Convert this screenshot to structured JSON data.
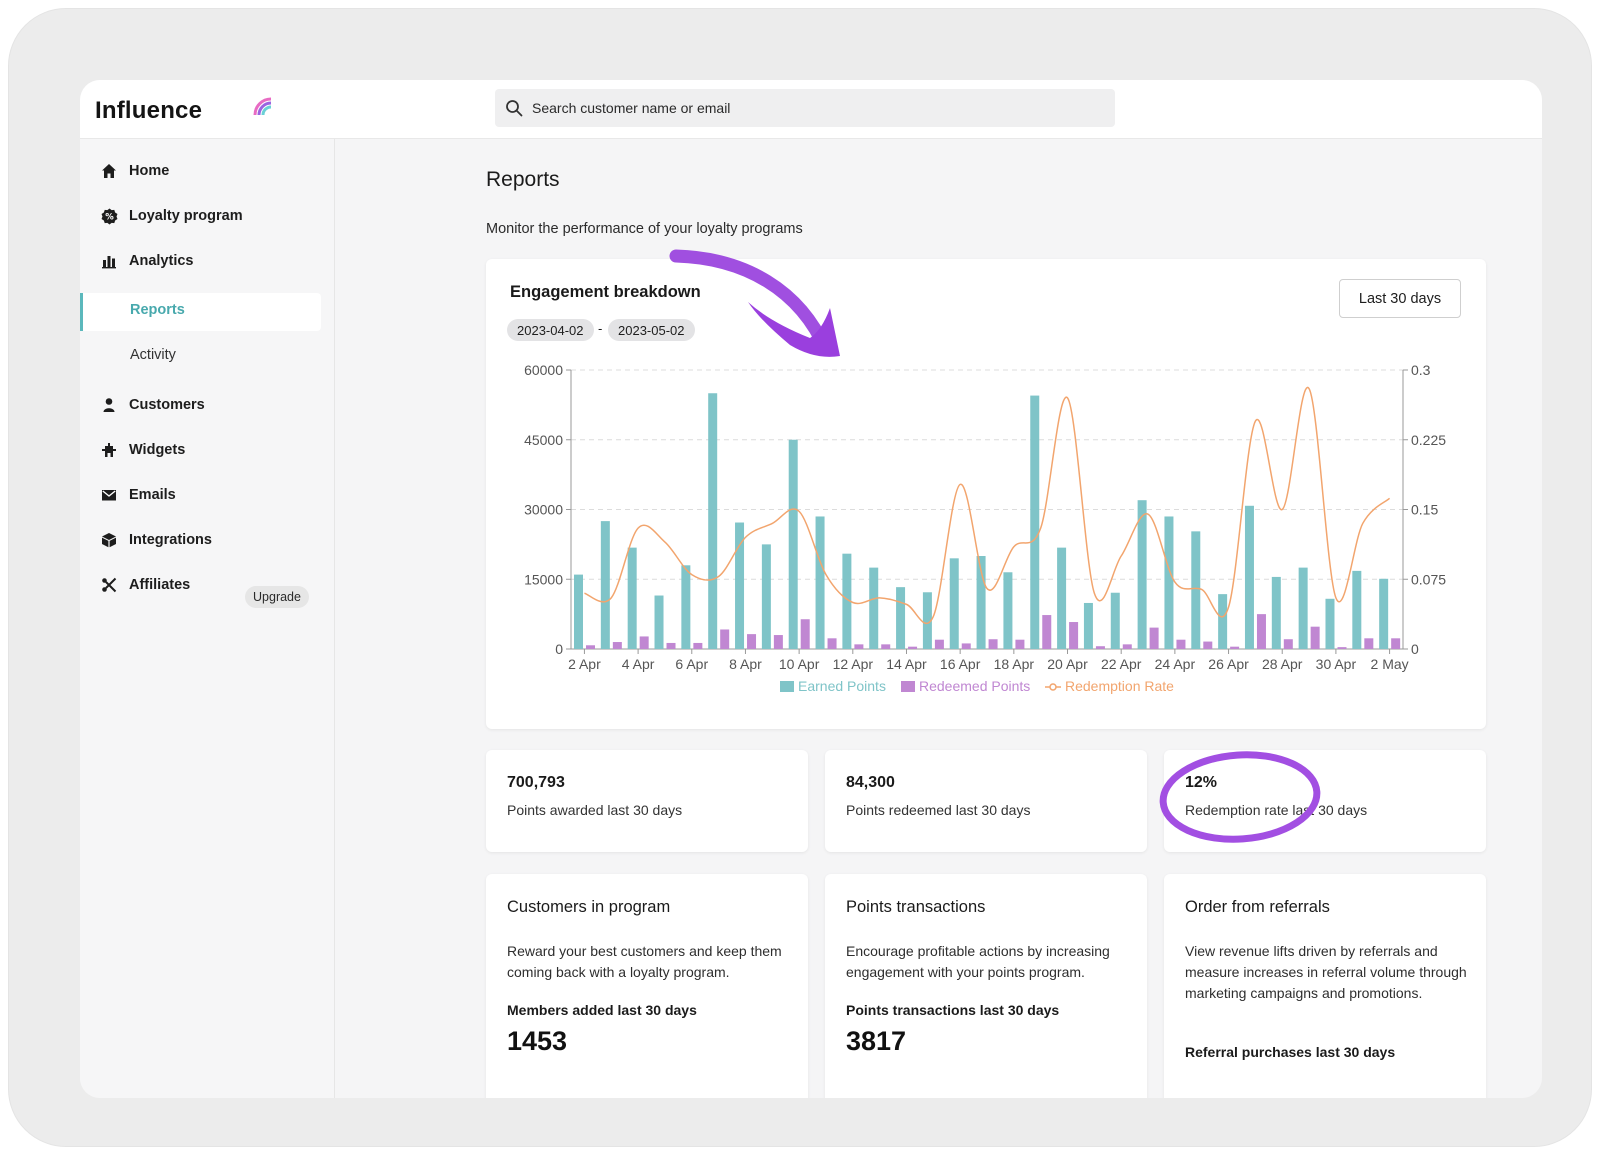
{
  "app": {
    "logo": "Influence",
    "search": {
      "placeholder": "Search customer name or email"
    }
  },
  "sidebar": {
    "items": [
      {
        "label": "Home",
        "icon": "home-icon"
      },
      {
        "label": "Loyalty program",
        "icon": "loyalty-icon"
      },
      {
        "label": "Analytics",
        "icon": "analytics-icon"
      },
      {
        "label": "Reports",
        "icon": ""
      },
      {
        "label": "Activity",
        "icon": ""
      },
      {
        "label": "Customers",
        "icon": "user-icon"
      },
      {
        "label": "Widgets",
        "icon": "widgets-icon"
      },
      {
        "label": "Emails",
        "icon": "mail-icon"
      },
      {
        "label": "Integrations",
        "icon": "cube-icon"
      },
      {
        "label": "Affiliates",
        "icon": "affiliates-icon"
      }
    ],
    "upgrade_label": "Upgrade"
  },
  "page": {
    "title": "Reports",
    "subtitle": "Monitor the performance of your loyalty programs"
  },
  "engagement": {
    "title": "Engagement breakdown",
    "date_start": "2023-04-02",
    "date_separator": "-",
    "date_end": "2023-05-02",
    "range_label": "Last 30 days"
  },
  "stats": [
    {
      "value": "700,793",
      "label": "Points awarded last 30 days"
    },
    {
      "value": "84,300",
      "label": "Points redeemed last 30 days"
    },
    {
      "value": "12%",
      "label": "Redemption rate last 30 days"
    }
  ],
  "cards": [
    {
      "title": "Customers in program",
      "description": "Reward your best customers and keep them coming back with a loyalty program.",
      "metric_label": "Members added last 30 days",
      "metric_value": "1453"
    },
    {
      "title": "Points transactions",
      "description": "Encourage profitable actions by increasing engagement with your points program.",
      "metric_label": "Points transactions last 30 days",
      "metric_value": "3817"
    },
    {
      "title": "Order from referrals",
      "description": "View revenue lifts driven by referrals and measure increases in referral volume through marketing campaigns and promotions.",
      "metric_label": "Referral purchases last 30 days",
      "metric_value": ""
    }
  ],
  "colors": {
    "earned": "#7fc4c8",
    "redeemed": "#c087d2",
    "rate": "#f2a56e",
    "accent": "#48a9ad",
    "annotation": "#9f44de"
  },
  "chart_data": {
    "type": "bar",
    "title": "Engagement breakdown",
    "categories": [
      "2 Apr",
      "3 Apr",
      "4 Apr",
      "5 Apr",
      "6 Apr",
      "7 Apr",
      "8 Apr",
      "9 Apr",
      "10 Apr",
      "11 Apr",
      "12 Apr",
      "13 Apr",
      "14 Apr",
      "15 Apr",
      "16 Apr",
      "17 Apr",
      "18 Apr",
      "19 Apr",
      "20 Apr",
      "21 Apr",
      "22 Apr",
      "23 Apr",
      "24 Apr",
      "25 Apr",
      "26 Apr",
      "27 Apr",
      "28 Apr",
      "29 Apr",
      "30 Apr",
      "1 May",
      "2 May"
    ],
    "x_tick_labels": [
      "2 Apr",
      "4 Apr",
      "6 Apr",
      "8 Apr",
      "10 Apr",
      "12 Apr",
      "14 Apr",
      "16 Apr",
      "18 Apr",
      "20 Apr",
      "22 Apr",
      "24 Apr",
      "26 Apr",
      "28 Apr",
      "30 Apr",
      "2 May"
    ],
    "series": [
      {
        "name": "Earned Points",
        "axis": "left",
        "values": [
          16000,
          27500,
          21800,
          11500,
          18000,
          55000,
          27200,
          22500,
          45000,
          28500,
          20500,
          17500,
          13300,
          12200,
          19500,
          20000,
          16500,
          54500,
          21800,
          9900,
          12100,
          32000,
          28500,
          25300,
          11800,
          30800,
          15500,
          17500,
          10800,
          16800,
          15100
        ]
      },
      {
        "name": "Redeemed Points",
        "axis": "left",
        "values": [
          800,
          1500,
          2700,
          1300,
          1300,
          4200,
          3200,
          3000,
          6400,
          2300,
          1000,
          1000,
          500,
          2000,
          1200,
          2100,
          2000,
          7300,
          5800,
          600,
          1000,
          4600,
          2000,
          1600,
          500,
          7500,
          2100,
          4800,
          400,
          2300,
          2300
        ]
      },
      {
        "name": "Redemption Rate",
        "axis": "right",
        "type": "line",
        "values": [
          0.06,
          0.055,
          0.13,
          0.115,
          0.08,
          0.078,
          0.12,
          0.135,
          0.148,
          0.08,
          0.05,
          0.055,
          0.048,
          0.035,
          0.177,
          0.065,
          0.11,
          0.13,
          0.27,
          0.06,
          0.1,
          0.145,
          0.072,
          0.064,
          0.045,
          0.245,
          0.15,
          0.28,
          0.055,
          0.135,
          0.162
        ]
      }
    ],
    "y_left": {
      "ticks": [
        0,
        15000,
        30000,
        45000,
        60000
      ],
      "ylim": [
        0,
        60000
      ]
    },
    "y_right": {
      "ticks": [
        "0",
        "0.075",
        "0.15",
        "0.225",
        "0.3"
      ],
      "ylim": [
        0,
        0.3
      ]
    },
    "grid": true,
    "legend_position": "bottom"
  }
}
